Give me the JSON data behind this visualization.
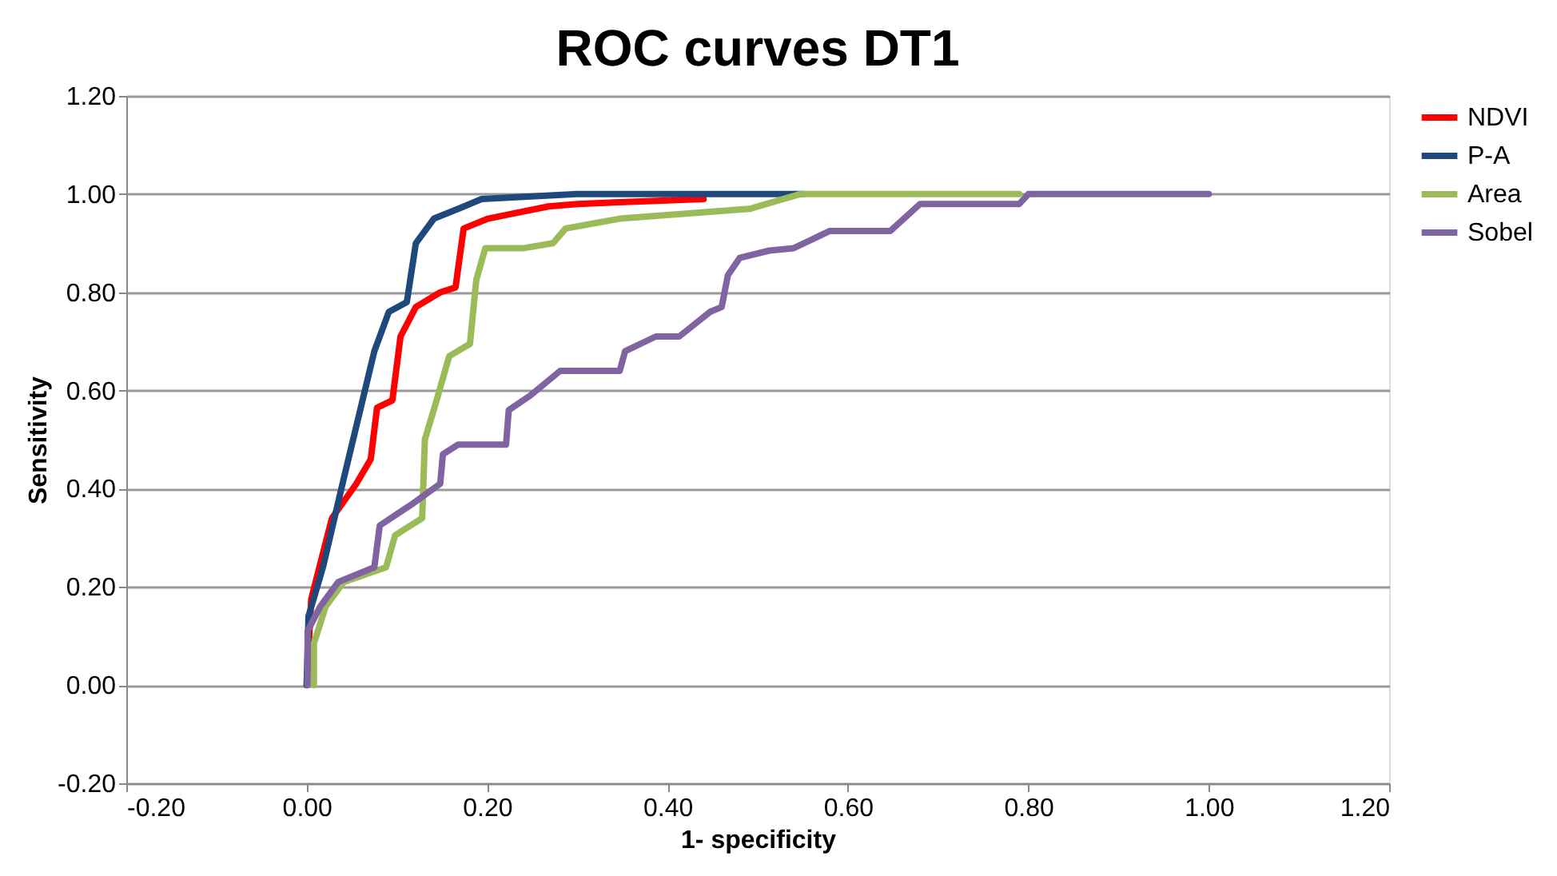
{
  "chart_data": {
    "type": "line",
    "title": "ROC curves DT1",
    "xlabel": "1- specificity",
    "ylabel": "Sensitivity",
    "xlim": [
      -0.2,
      1.2
    ],
    "xticks": [
      {
        "value": -0.2,
        "label": "-0.20"
      },
      {
        "value": 0,
        "label": "0.00"
      },
      {
        "value": 0.2,
        "label": "0.20"
      },
      {
        "value": 0.4,
        "label": "0.40"
      },
      {
        "value": 0.6,
        "label": "0.60"
      },
      {
        "value": 0.8,
        "label": "0.80"
      },
      {
        "value": 1,
        "label": "1.00"
      },
      {
        "value": 1.2,
        "label": "1.20"
      }
    ],
    "ylim": [
      -0.2,
      1.2
    ],
    "yticks": [
      {
        "value": -0.2,
        "label": "-0.20"
      },
      {
        "value": 0,
        "label": "0.00"
      },
      {
        "value": 0.2,
        "label": "0.20"
      },
      {
        "value": 0.4,
        "label": "0.40"
      },
      {
        "value": 0.6,
        "label": "0.60"
      },
      {
        "value": 0.8,
        "label": "0.80"
      },
      {
        "value": 1,
        "label": "1.00"
      },
      {
        "value": 1.2,
        "label": "1.20"
      }
    ],
    "grid": "y",
    "legend": "right",
    "marker": "none",
    "line_style": "solid",
    "series": [
      {
        "name": "NDVI",
        "color": "#ff0000",
        "x": [
          0,
          0.005,
          0.028,
          0.055,
          0.071,
          0.078,
          0.095,
          0.104,
          0.121,
          0.148,
          0.165,
          0.174,
          0.201,
          0.228,
          0.268,
          0.3,
          0.44
        ],
        "values": [
          0,
          0.175,
          0.34,
          0.41,
          0.46,
          0.565,
          0.58,
          0.71,
          0.77,
          0.8,
          0.81,
          0.93,
          0.95,
          0.96,
          0.975,
          0.98,
          0.99
        ]
      },
      {
        "name": "P-A",
        "color": "#1f497d",
        "x": [
          0,
          0.002,
          0.018,
          0.041,
          0.058,
          0.075,
          0.091,
          0.111,
          0.121,
          0.141,
          0.168,
          0.194,
          0.3,
          0.55
        ],
        "values": [
          0,
          0.14,
          0.24,
          0.42,
          0.55,
          0.68,
          0.76,
          0.78,
          0.9,
          0.95,
          0.97,
          0.99,
          1.0,
          1.0
        ]
      },
      {
        "name": "Area",
        "color": "#9bbb59",
        "x": [
          0.008,
          0.008,
          0.021,
          0.041,
          0.088,
          0.098,
          0.128,
          0.131,
          0.144,
          0.158,
          0.181,
          0.188,
          0.198,
          0.241,
          0.273,
          0.287,
          0.347,
          0.491,
          0.547,
          0.79
        ],
        "values": [
          0,
          0.085,
          0.16,
          0.21,
          0.24,
          0.305,
          0.34,
          0.5,
          0.58,
          0.67,
          0.695,
          0.825,
          0.89,
          0.89,
          0.9,
          0.93,
          0.95,
          0.97,
          1.0,
          1.0
        ]
      },
      {
        "name": "Sobel",
        "color": "#8064a2",
        "x": [
          0.001,
          0.001,
          0.015,
          0.035,
          0.075,
          0.081,
          0.118,
          0.148,
          0.151,
          0.168,
          0.221,
          0.224,
          0.248,
          0.281,
          0.347,
          0.353,
          0.387,
          0.413,
          0.447,
          0.46,
          0.467,
          0.48,
          0.513,
          0.54,
          0.58,
          0.647,
          0.68,
          0.79,
          0.8,
          1.0
        ],
        "values": [
          0,
          0.11,
          0.16,
          0.21,
          0.24,
          0.325,
          0.37,
          0.41,
          0.47,
          0.49,
          0.49,
          0.56,
          0.59,
          0.64,
          0.64,
          0.68,
          0.71,
          0.71,
          0.76,
          0.77,
          0.835,
          0.87,
          0.885,
          0.89,
          0.925,
          0.925,
          0.98,
          0.98,
          1.0,
          1.0
        ]
      }
    ]
  }
}
